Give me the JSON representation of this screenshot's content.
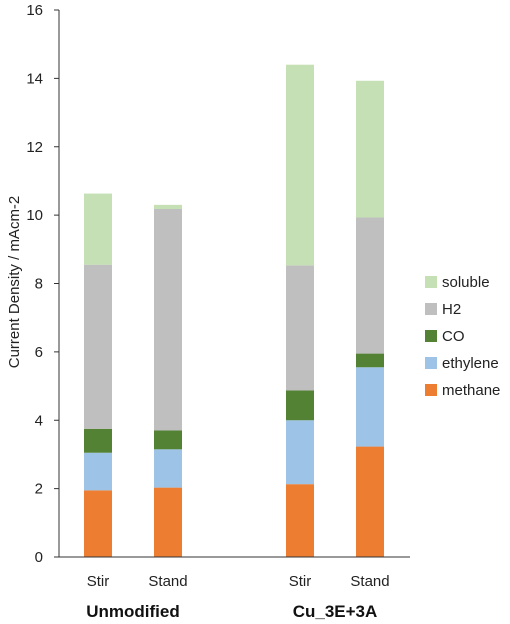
{
  "chart_data": {
    "type": "bar",
    "stacked": true,
    "title": "",
    "xlabel": "",
    "ylabel": "Current Density / mAcm-2",
    "ylim": [
      0,
      16
    ],
    "yticks": [
      0,
      2,
      4,
      6,
      8,
      10,
      12,
      14,
      16
    ],
    "grid": false,
    "legend_position": "right",
    "categories": [
      "Stir",
      "Stand",
      "Stir",
      "Stand"
    ],
    "groups": [
      {
        "label": "Unmodified",
        "categories": [
          0,
          1
        ]
      },
      {
        "label": "Cu_3E+3A",
        "categories": [
          2,
          3
        ]
      }
    ],
    "series": [
      {
        "name": "methane",
        "color": "#ED7D31",
        "values": [
          1.95,
          2.03,
          2.13,
          3.23
        ]
      },
      {
        "name": "ethylene",
        "color": "#9DC3E6",
        "values": [
          1.1,
          1.12,
          1.87,
          2.32
        ]
      },
      {
        "name": "CO",
        "color": "#548235",
        "values": [
          0.7,
          0.55,
          0.87,
          0.4
        ]
      },
      {
        "name": "H2",
        "color": "#BFBFBF",
        "values": [
          4.8,
          6.48,
          3.66,
          3.98
        ]
      },
      {
        "name": "soluble",
        "color": "#C5E0B4",
        "values": [
          2.08,
          0.12,
          5.87,
          4.0
        ]
      }
    ]
  }
}
